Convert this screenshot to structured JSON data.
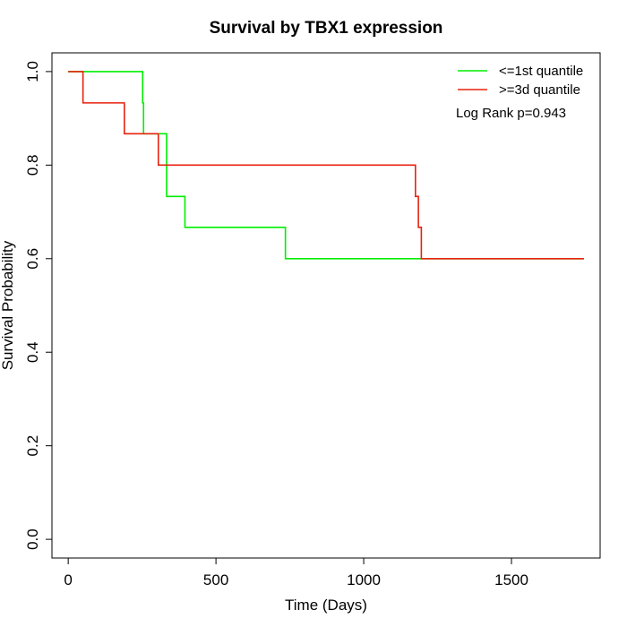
{
  "chart_data": {
    "type": "line",
    "title": "Survival by TBX1 expression",
    "xlabel": "Time (Days)",
    "ylabel": "Survival Probability",
    "xlim": [
      -55,
      1800
    ],
    "ylim": [
      -0.04,
      1.04
    ],
    "x_ticks": [
      0,
      500,
      1000,
      1500
    ],
    "y_ticks": [
      0.0,
      0.2,
      0.4,
      0.6,
      0.8,
      1.0
    ],
    "x_tick_labels": [
      "0",
      "500",
      "1000",
      "1500"
    ],
    "y_tick_labels": [
      "0.0",
      "0.2",
      "0.4",
      "0.6",
      "0.8",
      "1.0"
    ],
    "grid": false,
    "legend_position": "top-right",
    "annotation": "Log Rank p=0.943",
    "series": [
      {
        "name": "<=1st quantile",
        "color": "#00ee00",
        "step": true,
        "x": [
          0,
          252,
          255,
          330,
          333,
          395,
          735,
          1745
        ],
        "y": [
          1.0,
          0.933,
          0.867,
          0.867,
          0.733,
          0.667,
          0.6,
          0.6
        ]
      },
      {
        "name": ">=3d quantile",
        "color": "#e8220c",
        "step": true,
        "x": [
          0,
          50,
          190,
          305,
          1175,
          1185,
          1195,
          1745
        ],
        "y": [
          1.0,
          0.933,
          0.867,
          0.8,
          0.733,
          0.667,
          0.6,
          0.6
        ]
      }
    ]
  }
}
